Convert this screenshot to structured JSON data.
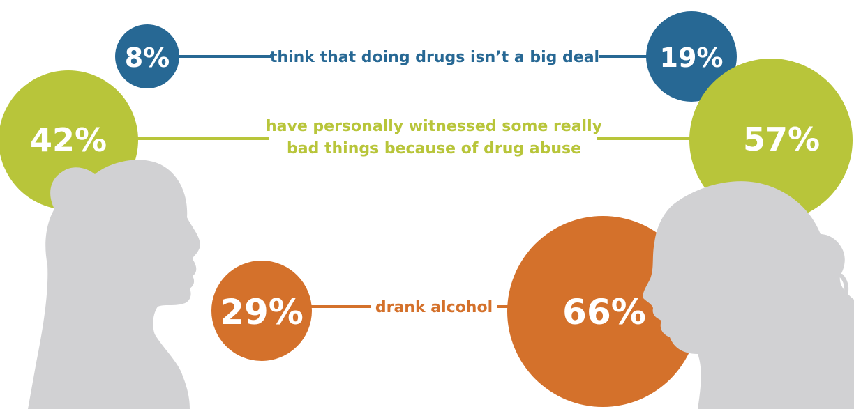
{
  "chart_data": {
    "type": "bubble-comparison",
    "title": "",
    "colors": {
      "blue": "#276894",
      "green": "#b8c53a",
      "orange": "#d4712b",
      "silhouette": "#d1d1d3"
    },
    "rows": [
      {
        "label": "think that doing drugs isn’t a big deal",
        "color": "#276894",
        "left": {
          "value": 8,
          "text": "8%"
        },
        "right": {
          "value": 19,
          "text": "19%"
        }
      },
      {
        "label_lines": [
          "have personally witnessed some really",
          "bad things because of drug abuse"
        ],
        "color": "#b8c53a",
        "left": {
          "value": 42,
          "text": "42%"
        },
        "right": {
          "value": 57,
          "text": "57%"
        }
      },
      {
        "label": "drank alcohol",
        "color": "#d4712b",
        "left": {
          "value": 29,
          "text": "29%"
        },
        "right": {
          "value": 66,
          "text": "66%"
        }
      }
    ]
  }
}
